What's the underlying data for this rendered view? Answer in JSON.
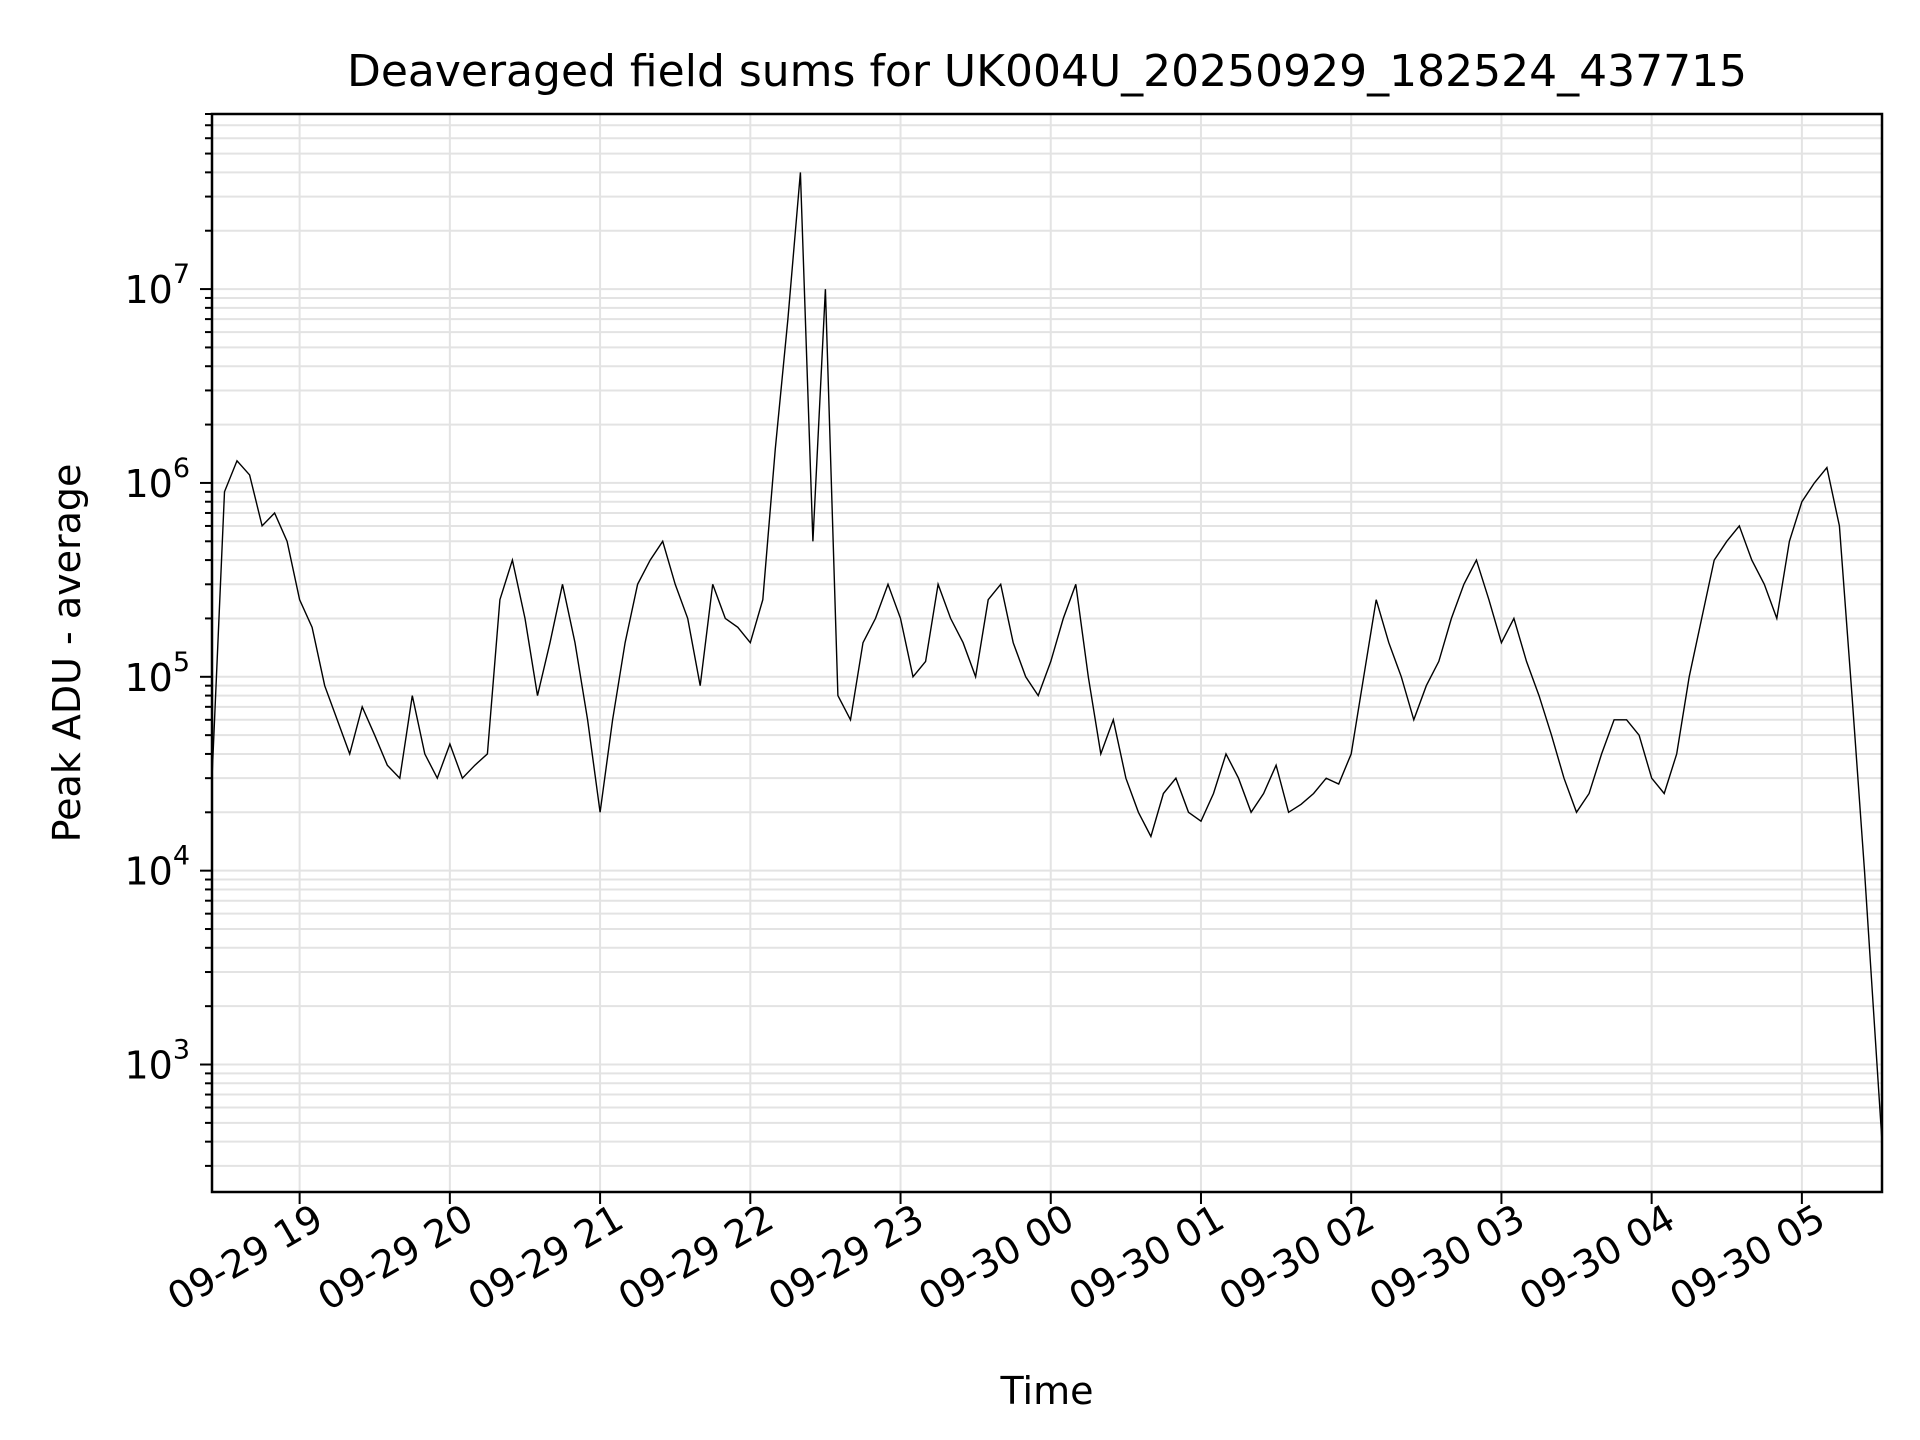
{
  "chart_data": {
    "type": "line",
    "title": "Deaveraged field sums for UK004U_20250929_182524_437715",
    "xlabel": "Time",
    "ylabel": "Peak ADU - average",
    "yscale": "log",
    "ylim": [
      220,
      80000000
    ],
    "xlim": [
      "2025-09-29 18:25",
      "2025-09-30 05:32"
    ],
    "grid": "major and minor",
    "x_tick_labels": [
      "09-29 19",
      "09-29 20",
      "09-29 21",
      "09-29 22",
      "09-29 23",
      "09-30 00",
      "09-30 01",
      "09-30 02",
      "09-30 03",
      "09-30 04",
      "09-30 05"
    ],
    "y_tick_labels": [
      {
        "base": "10",
        "exp": "3",
        "value": 1000
      },
      {
        "base": "10",
        "exp": "4",
        "value": 10000
      },
      {
        "base": "10",
        "exp": "5",
        "value": 100000
      },
      {
        "base": "10",
        "exp": "6",
        "value": 1000000
      },
      {
        "base": "10",
        "exp": "7",
        "value": 10000000
      }
    ],
    "series": [
      {
        "color": "#000000",
        "x": [
          "2025-09-29 18:25",
          "2025-09-29 18:30",
          "2025-09-29 18:35",
          "2025-09-29 18:40",
          "2025-09-29 18:45",
          "2025-09-29 18:50",
          "2025-09-29 18:55",
          "2025-09-29 19:00",
          "2025-09-29 19:05",
          "2025-09-29 19:10",
          "2025-09-29 19:15",
          "2025-09-29 19:20",
          "2025-09-29 19:25",
          "2025-09-29 19:30",
          "2025-09-29 19:35",
          "2025-09-29 19:40",
          "2025-09-29 19:45",
          "2025-09-29 19:50",
          "2025-09-29 19:55",
          "2025-09-29 20:00",
          "2025-09-29 20:05",
          "2025-09-29 20:10",
          "2025-09-29 20:15",
          "2025-09-29 20:20",
          "2025-09-29 20:25",
          "2025-09-29 20:30",
          "2025-09-29 20:35",
          "2025-09-29 20:40",
          "2025-09-29 20:45",
          "2025-09-29 20:50",
          "2025-09-29 20:55",
          "2025-09-29 21:00",
          "2025-09-29 21:05",
          "2025-09-29 21:10",
          "2025-09-29 21:15",
          "2025-09-29 21:20",
          "2025-09-29 21:25",
          "2025-09-29 21:30",
          "2025-09-29 21:35",
          "2025-09-29 21:40",
          "2025-09-29 21:45",
          "2025-09-29 21:50",
          "2025-09-29 21:55",
          "2025-09-29 22:00",
          "2025-09-29 22:05",
          "2025-09-29 22:10",
          "2025-09-29 22:15",
          "2025-09-29 22:20",
          "2025-09-29 22:25",
          "2025-09-29 22:30",
          "2025-09-29 22:35",
          "2025-09-29 22:40",
          "2025-09-29 22:45",
          "2025-09-29 22:50",
          "2025-09-29 22:55",
          "2025-09-29 23:00",
          "2025-09-29 23:05",
          "2025-09-29 23:10",
          "2025-09-29 23:15",
          "2025-09-29 23:20",
          "2025-09-29 23:25",
          "2025-09-29 23:30",
          "2025-09-29 23:35",
          "2025-09-29 23:40",
          "2025-09-29 23:45",
          "2025-09-29 23:50",
          "2025-09-29 23:55",
          "2025-09-30 00:00",
          "2025-09-30 00:05",
          "2025-09-30 00:10",
          "2025-09-30 00:15",
          "2025-09-30 00:20",
          "2025-09-30 00:25",
          "2025-09-30 00:30",
          "2025-09-30 00:35",
          "2025-09-30 00:40",
          "2025-09-30 00:45",
          "2025-09-30 00:50",
          "2025-09-30 00:55",
          "2025-09-30 01:00",
          "2025-09-30 01:05",
          "2025-09-30 01:10",
          "2025-09-30 01:15",
          "2025-09-30 01:20",
          "2025-09-30 01:25",
          "2025-09-30 01:30",
          "2025-09-30 01:35",
          "2025-09-30 01:40",
          "2025-09-30 01:45",
          "2025-09-30 01:50",
          "2025-09-30 01:55",
          "2025-09-30 02:00",
          "2025-09-30 02:05",
          "2025-09-30 02:10",
          "2025-09-30 02:15",
          "2025-09-30 02:20",
          "2025-09-30 02:25",
          "2025-09-30 02:30",
          "2025-09-30 02:35",
          "2025-09-30 02:40",
          "2025-09-30 02:45",
          "2025-09-30 02:50",
          "2025-09-30 02:55",
          "2025-09-30 03:00",
          "2025-09-30 03:05",
          "2025-09-30 03:10",
          "2025-09-30 03:15",
          "2025-09-30 03:20",
          "2025-09-30 03:25",
          "2025-09-30 03:30",
          "2025-09-30 03:35",
          "2025-09-30 03:40",
          "2025-09-30 03:45",
          "2025-09-30 03:50",
          "2025-09-30 03:55",
          "2025-09-30 04:00",
          "2025-09-30 04:05",
          "2025-09-30 04:10",
          "2025-09-30 04:15",
          "2025-09-30 04:20",
          "2025-09-30 04:25",
          "2025-09-30 04:30",
          "2025-09-30 04:35",
          "2025-09-30 04:40",
          "2025-09-30 04:45",
          "2025-09-30 04:50",
          "2025-09-30 04:55",
          "2025-09-30 05:00",
          "2025-09-30 05:05",
          "2025-09-30 05:10",
          "2025-09-30 05:15",
          "2025-09-30 05:20",
          "2025-09-30 05:25",
          "2025-09-30 05:30",
          "2025-09-30 05:32"
        ],
        "y": [
          30000,
          900000,
          1300000,
          1100000,
          600000,
          700000,
          500000,
          250000,
          180000,
          90000,
          60000,
          40000,
          70000,
          50000,
          35000,
          30000,
          80000,
          40000,
          30000,
          45000,
          30000,
          35000,
          40000,
          250000,
          400000,
          200000,
          80000,
          150000,
          300000,
          150000,
          60000,
          20000,
          60000,
          150000,
          300000,
          400000,
          500000,
          300000,
          200000,
          90000,
          300000,
          200000,
          180000,
          150000,
          250000,
          1500000,
          7000000,
          40000000,
          500000,
          10000000,
          80000,
          60000,
          150000,
          200000,
          300000,
          200000,
          100000,
          120000,
          300000,
          200000,
          150000,
          100000,
          250000,
          300000,
          150000,
          100000,
          80000,
          120000,
          200000,
          300000,
          100000,
          40000,
          60000,
          30000,
          20000,
          15000,
          25000,
          30000,
          20000,
          18000,
          25000,
          40000,
          30000,
          20000,
          25000,
          35000,
          20000,
          22000,
          25000,
          30000,
          28000,
          40000,
          100000,
          250000,
          150000,
          100000,
          60000,
          90000,
          120000,
          200000,
          300000,
          400000,
          250000,
          150000,
          200000,
          120000,
          80000,
          50000,
          30000,
          20000,
          25000,
          40000,
          60000,
          60000,
          50000,
          30000,
          25000,
          40000,
          100000,
          200000,
          400000,
          500000,
          600000,
          400000,
          300000,
          200000,
          500000,
          800000,
          1000000,
          1200000,
          600000,
          80000,
          10000,
          1000,
          400
        ]
      }
    ]
  }
}
